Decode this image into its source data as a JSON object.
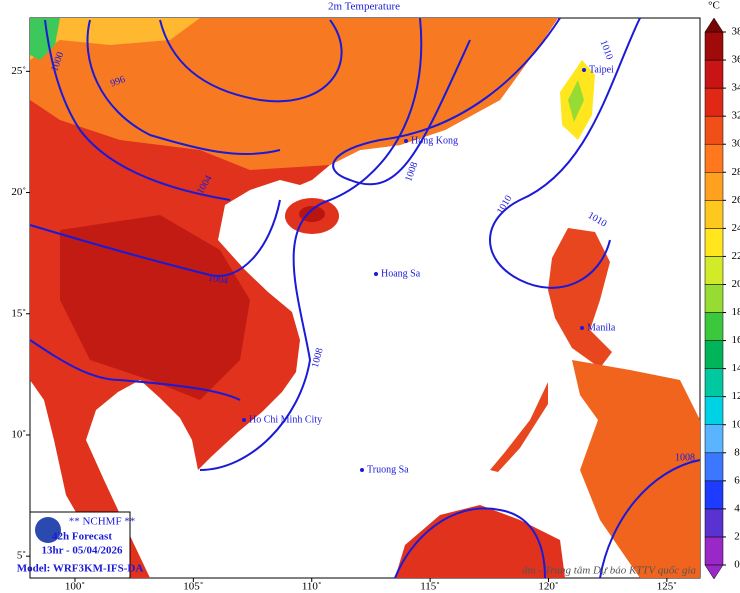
{
  "header": {
    "title": "2m Temperature"
  },
  "map": {
    "lon_range": [
      98.1,
      126.4
    ],
    "lat_range": [
      4.1,
      27.2
    ],
    "lon_ticks": [
      {
        "value": 100,
        "label": "100˚"
      },
      {
        "value": 105,
        "label": "105˚"
      },
      {
        "value": 110,
        "label": "110˚"
      },
      {
        "value": 115,
        "label": "115˚"
      },
      {
        "value": 120,
        "label": "120˚"
      },
      {
        "value": 125,
        "label": "125˚"
      }
    ],
    "lat_ticks": [
      {
        "value": 5,
        "label": "5˚"
      },
      {
        "value": 10,
        "label": "10˚"
      },
      {
        "value": 15,
        "label": "15˚"
      },
      {
        "value": 20,
        "label": "20˚"
      },
      {
        "value": 25,
        "label": "25˚"
      }
    ]
  },
  "colorbar": {
    "unit": "°C",
    "ticks": [
      0,
      2,
      4,
      6,
      8,
      10,
      12,
      14,
      16,
      18,
      20,
      22,
      24,
      26,
      28,
      30,
      32,
      34,
      36,
      38
    ],
    "colors": [
      "#9a28c8",
      "#5a32d2",
      "#1e3cff",
      "#3c78ff",
      "#5ab4ff",
      "#00d2e6",
      "#00c8a0",
      "#00b45a",
      "#3cc83c",
      "#96dc32",
      "#d2eb28",
      "#ffe61e",
      "#ffc81e",
      "#ffa01e",
      "#ff781e",
      "#f05018",
      "#e02814",
      "#c81414",
      "#a00a0a",
      "#780505"
    ]
  },
  "isobar_labels": [
    1000,
    996,
    1004,
    1008,
    1010,
    1010,
    1010,
    1004,
    1008,
    1008
  ],
  "places": [
    "Taipei",
    "Hong Kong",
    "Hoang Sa",
    "Manila",
    "Ho Chi Minh City",
    "Truong Sa"
  ],
  "info": {
    "org": "** NCHMF **",
    "forecast": "42h Forecast",
    "time": "13hr - 05/04/2026",
    "model": "Model: WRF3KM-IFS-DA"
  },
  "credit": "âm - Trung tâm Dự báo KTTV quốc gia"
}
